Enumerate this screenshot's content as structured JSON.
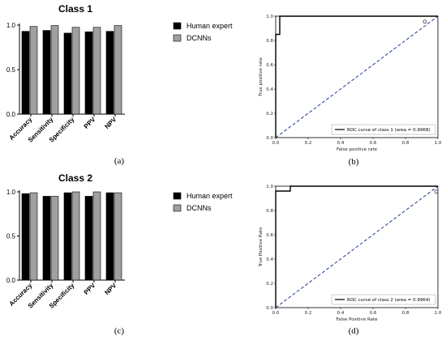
{
  "chart_data": [
    {
      "id": "a",
      "type": "bar",
      "title": "Class 1",
      "caption": "(a)",
      "categories": [
        "Accuracy",
        "Sensitivity",
        "Specificity",
        "PPV",
        "NPV"
      ],
      "ylim": [
        0,
        1.0
      ],
      "yticks": [
        "0.0",
        "0.5",
        "1.0"
      ],
      "series": [
        {
          "name": "Human expert",
          "color": "#000000",
          "values": [
            0.93,
            0.94,
            0.91,
            0.925,
            0.93
          ]
        },
        {
          "name": "DCNNs",
          "color": "#a0a0a0",
          "values": [
            0.985,
            0.995,
            0.975,
            0.975,
            0.995
          ]
        }
      ],
      "legend_position": "right"
    },
    {
      "id": "b",
      "type": "line",
      "caption": "(b)",
      "xlabel": "False positive rate",
      "ylabel": "True positive rate",
      "xlim": [
        0,
        1.0
      ],
      "ylim": [
        0,
        1.0
      ],
      "xticks": [
        "0.0",
        "0.2",
        "0.4",
        "0.6",
        "0.8",
        "1.0"
      ],
      "yticks": [
        "0.0",
        "0.2",
        "0.4",
        "0.6",
        "0.8",
        "1.0"
      ],
      "series": [
        {
          "name": "ROC curve of class 1 (area = 0.9968)",
          "color": "#000000",
          "x": [
            0.0,
            0.0,
            0.025,
            0.025,
            1.0
          ],
          "y": [
            0.0,
            0.85,
            0.85,
            1.0,
            1.0
          ]
        }
      ],
      "diagonal": {
        "color": "#1f3a93",
        "x": [
          0,
          1
        ],
        "y": [
          0,
          1
        ]
      },
      "marker": {
        "x": 0.92,
        "y": 0.955
      },
      "legend_position": "lower right"
    },
    {
      "id": "c",
      "type": "bar",
      "title": "Class 2",
      "caption": "(c)",
      "categories": [
        "Accuracy",
        "Sensitivity",
        "Specificity",
        "PPV",
        "NPV"
      ],
      "ylim": [
        0,
        1.0
      ],
      "yticks": [
        "0.0",
        "0.5",
        "1.0"
      ],
      "series": [
        {
          "name": "Human expert",
          "color": "#000000",
          "values": [
            0.98,
            0.95,
            0.99,
            0.95,
            0.99
          ]
        },
        {
          "name": "DCNNs",
          "color": "#a0a0a0",
          "values": [
            0.99,
            0.95,
            1.0,
            1.0,
            0.99
          ]
        }
      ],
      "legend_position": "right"
    },
    {
      "id": "d",
      "type": "line",
      "caption": "(d)",
      "xlabel": "False Positive Rate",
      "ylabel": "True Positive Rate",
      "xlim": [
        0,
        1.0
      ],
      "ylim": [
        0,
        1.0
      ],
      "xticks": [
        "0.0",
        "0.2",
        "0.4",
        "0.6",
        "0.8",
        "1.0"
      ],
      "yticks": [
        "0.0",
        "0.2",
        "0.4",
        "0.6",
        "0.8",
        "1.0"
      ],
      "series": [
        {
          "name": "ROC curve of class 2 (area = 0.9964)",
          "color": "#000000",
          "x": [
            0.0,
            0.0,
            0.09,
            0.09,
            1.0
          ],
          "y": [
            0.0,
            0.96,
            0.96,
            1.0,
            1.0
          ]
        }
      ],
      "diagonal": {
        "color": "#1f3a93",
        "x": [
          0,
          1
        ],
        "y": [
          0,
          1
        ]
      },
      "marker": {
        "x": 0.99,
        "y": 0.955
      },
      "legend_position": "lower right"
    }
  ]
}
